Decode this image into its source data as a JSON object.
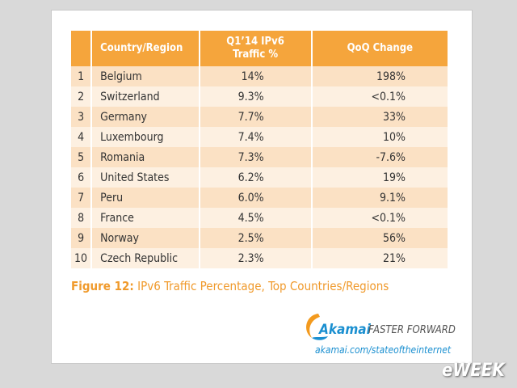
{
  "table": {
    "columns": [
      "Country/Region",
      "Q1’14 IPv6 Traffic %",
      "QoQ Change"
    ],
    "rows": [
      [
        1,
        "Belgium",
        "14%",
        "198%"
      ],
      [
        2,
        "Switzerland",
        "9.3%",
        "<0.1%"
      ],
      [
        3,
        "Germany",
        "7.7%",
        "33%"
      ],
      [
        4,
        "Luxembourg",
        "7.4%",
        "10%"
      ],
      [
        5,
        "Romania",
        "7.3%",
        "-7.6%"
      ],
      [
        6,
        "United States",
        "6.2%",
        "19%"
      ],
      [
        7,
        "Peru",
        "6.0%",
        "9.1%"
      ],
      [
        8,
        "France",
        "4.5%",
        "<0.1%"
      ],
      [
        9,
        "Norway",
        "2.5%",
        "56%"
      ],
      [
        10,
        "Czech Republic",
        "2.3%",
        "21%"
      ]
    ]
  },
  "caption": {
    "label": "Figure 12:",
    "text": "IPv6 Traffic Percentage, Top Countries/Regions"
  },
  "logo": {
    "brand": "Akamai",
    "tagline": "FASTER FORWARD",
    "url": "akamai.com/stateoftheinternet"
  },
  "watermark": "eWEEK"
}
